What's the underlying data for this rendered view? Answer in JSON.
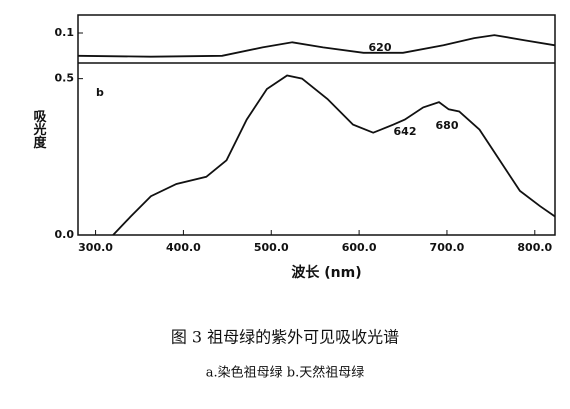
{
  "chart_data": [
    {
      "type": "line",
      "x": [
        280,
        363,
        444,
        490,
        524,
        559,
        605,
        650,
        696,
        731,
        754,
        788,
        823
      ],
      "series": [
        {
          "color": "#111111",
          "values": [
            0.024,
            0.021,
            0.024,
            0.052,
            0.069,
            0.052,
            0.034,
            0.034,
            0.059,
            0.083,
            0.093,
            0.076,
            0.059
          ]
        }
      ],
      "xlim": [
        280,
        823
      ],
      "ylim": [
        0,
        0.16
      ],
      "yticks": [
        0.1
      ],
      "annotations": [
        "620"
      ]
    },
    {
      "type": "line",
      "title": "b",
      "x": [
        320,
        340,
        363,
        392,
        426,
        449,
        472,
        495,
        518,
        535,
        564,
        593,
        616,
        639,
        652,
        673,
        691,
        702,
        714,
        737,
        760,
        783,
        806,
        823
      ],
      "series": [
        {
          "color": "#111111",
          "values": [
            0.0,
            0.059,
            0.124,
            0.163,
            0.186,
            0.239,
            0.369,
            0.467,
            0.51,
            0.5,
            0.435,
            0.353,
            0.327,
            0.353,
            0.369,
            0.408,
            0.425,
            0.402,
            0.395,
            0.337,
            0.239,
            0.141,
            0.092,
            0.059
          ]
        }
      ],
      "xlim": [
        280,
        823
      ],
      "ylim": [
        0,
        0.55
      ],
      "yticks": [
        {
          "value": 0,
          "label": "0.0"
        },
        0.5
      ],
      "xticks": [
        {
          "value": 300,
          "label": "300.0"
        },
        {
          "value": 400,
          "label": "400.0"
        },
        {
          "value": 500,
          "label": "500.0"
        },
        {
          "value": 600,
          "label": "600.0"
        },
        {
          "value": 700,
          "label": "700.0"
        },
        {
          "value": 800,
          "label": "800.0"
        }
      ],
      "x_label": "波长 (nm)",
      "y_label": "吸光度",
      "annotations": [
        "642",
        "680"
      ]
    }
  ],
  "caption": {
    "title": "图 3  祖母绿的紫外可见吸收光谱",
    "subtitle": "a.染色祖母绿    b.天然祖母绿"
  }
}
